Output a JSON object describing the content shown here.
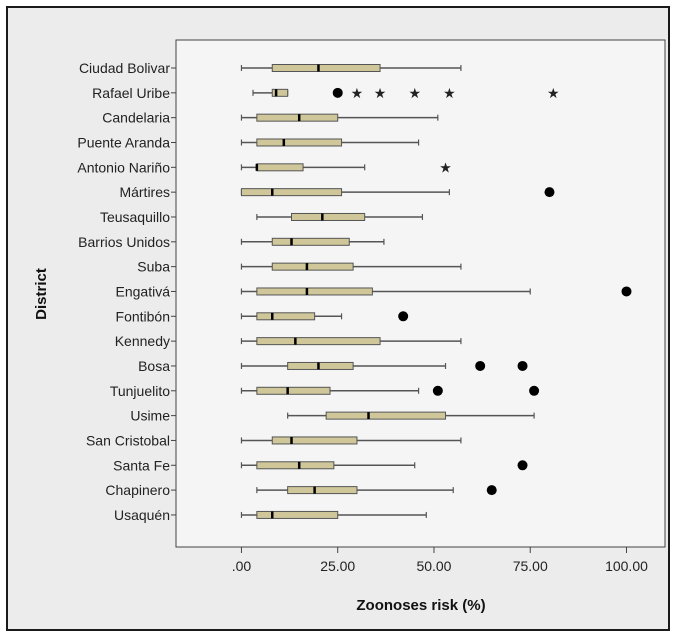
{
  "chart_data": {
    "type": "boxplot",
    "orientation": "horizontal",
    "xlabel": "Zoonoses risk (%)",
    "ylabel": "District",
    "xlim": [
      -17,
      110
    ],
    "xticks": [
      0,
      25,
      50,
      75,
      100
    ],
    "xtick_labels": [
      ".00",
      "25.00",
      "50.00",
      "75.00",
      "100.00"
    ],
    "grid": false,
    "colors": {
      "plot_background": "#f5f5f5",
      "box_fill": "#cfc79a",
      "box_stroke": "#555555",
      "median": "#000000",
      "whisker": "#555555",
      "outlier": "#000000"
    },
    "districts": [
      {
        "name": "Ciudad Bolivar",
        "min": 0,
        "q1": 8,
        "median": 20,
        "q3": 36,
        "max": 57,
        "outliers": [],
        "extremes": []
      },
      {
        "name": "Rafael Uribe",
        "min": 3,
        "q1": 8,
        "median": 9,
        "q3": 12,
        "max": 12,
        "outliers": [
          25
        ],
        "extremes": [
          30,
          36,
          45,
          54,
          81
        ]
      },
      {
        "name": "Candelaria",
        "min": 0,
        "q1": 4,
        "median": 15,
        "q3": 25,
        "max": 51,
        "outliers": [],
        "extremes": []
      },
      {
        "name": "Puente Aranda",
        "min": 0,
        "q1": 4,
        "median": 11,
        "q3": 26,
        "max": 46,
        "outliers": [],
        "extremes": []
      },
      {
        "name": "Antonio Nariño",
        "min": 0,
        "q1": 4,
        "median": 4,
        "q3": 16,
        "max": 32,
        "outliers": [],
        "extremes": [
          53
        ]
      },
      {
        "name": "Mártires",
        "min": 0,
        "q1": 0,
        "median": 8,
        "q3": 26,
        "max": 54,
        "outliers": [
          80
        ],
        "extremes": []
      },
      {
        "name": "Teusaquillo",
        "min": 4,
        "q1": 13,
        "median": 21,
        "q3": 32,
        "max": 47,
        "outliers": [],
        "extremes": []
      },
      {
        "name": "Barrios Unidos",
        "min": 0,
        "q1": 8,
        "median": 13,
        "q3": 28,
        "max": 37,
        "outliers": [],
        "extremes": []
      },
      {
        "name": "Suba",
        "min": 0,
        "q1": 8,
        "median": 17,
        "q3": 29,
        "max": 57,
        "outliers": [],
        "extremes": []
      },
      {
        "name": "Engativá",
        "min": 0,
        "q1": 4,
        "median": 17,
        "q3": 34,
        "max": 75,
        "outliers": [
          100
        ],
        "extremes": []
      },
      {
        "name": "Fontibón",
        "min": 0,
        "q1": 4,
        "median": 8,
        "q3": 19,
        "max": 26,
        "outliers": [
          42
        ],
        "extremes": []
      },
      {
        "name": "Kennedy",
        "min": 0,
        "q1": 4,
        "median": 14,
        "q3": 36,
        "max": 57,
        "outliers": [],
        "extremes": []
      },
      {
        "name": "Bosa",
        "min": 0,
        "q1": 12,
        "median": 20,
        "q3": 29,
        "max": 53,
        "outliers": [
          62,
          73
        ],
        "extremes": []
      },
      {
        "name": "Tunjuelito",
        "min": 0,
        "q1": 4,
        "median": 12,
        "q3": 23,
        "max": 46,
        "outliers": [
          51,
          76
        ],
        "extremes": []
      },
      {
        "name": "Usime",
        "min": 12,
        "q1": 22,
        "median": 33,
        "q3": 53,
        "max": 76,
        "outliers": [],
        "extremes": []
      },
      {
        "name": "San Cristobal",
        "min": 0,
        "q1": 8,
        "median": 13,
        "q3": 30,
        "max": 57,
        "outliers": [],
        "extremes": []
      },
      {
        "name": "Santa Fe",
        "min": 0,
        "q1": 4,
        "median": 15,
        "q3": 24,
        "max": 45,
        "outliers": [
          73
        ],
        "extremes": []
      },
      {
        "name": "Chapinero",
        "min": 4,
        "q1": 12,
        "median": 19,
        "q3": 30,
        "max": 55,
        "outliers": [
          65
        ],
        "extremes": []
      },
      {
        "name": "Usaquén",
        "min": 0,
        "q1": 4,
        "median": 8,
        "q3": 25,
        "max": 48,
        "outliers": [],
        "extremes": []
      }
    ]
  }
}
